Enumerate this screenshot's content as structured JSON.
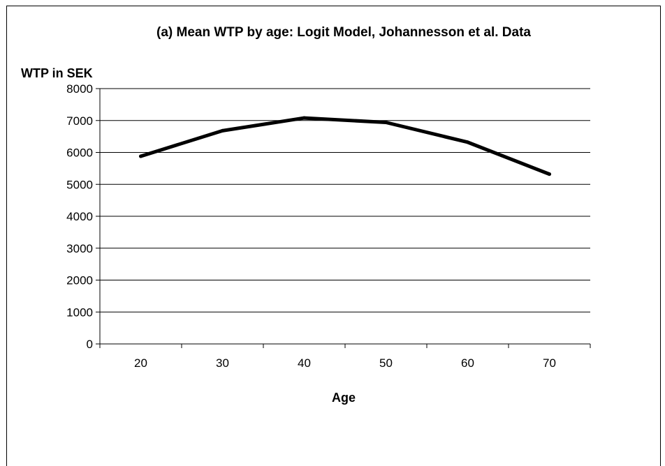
{
  "chart_data": {
    "type": "line",
    "title": "(a) Mean WTP by age: Logit Model, Johannesson et al. Data",
    "ylabel": "WTP in SEK",
    "xlabel": "Age",
    "categories": [
      "20",
      "30",
      "40",
      "50",
      "60",
      "70"
    ],
    "series": [
      {
        "values": [
          5880,
          6680,
          7080,
          6940,
          6320,
          5320
        ]
      }
    ],
    "ylim": [
      0,
      8000
    ],
    "yticks": [
      0,
      1000,
      2000,
      3000,
      4000,
      5000,
      6000,
      7000,
      8000
    ],
    "grid": "horizontal",
    "legend": "none",
    "line_color": "#000000"
  }
}
